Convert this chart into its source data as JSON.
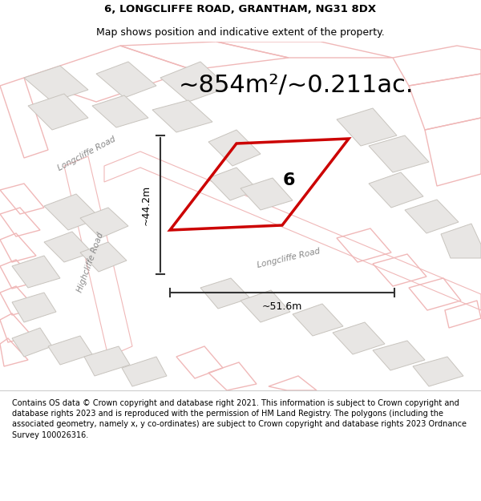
{
  "title_line1": "6, LONGCLIFFE ROAD, GRANTHAM, NG31 8DX",
  "title_line2": "Map shows position and indicative extent of the property.",
  "area_text": "~854m²/~0.211ac.",
  "label_number": "6",
  "dim_vertical": "~44.2m",
  "dim_horizontal": "~51.6m",
  "road_label1": "Longcliffe Road",
  "road_label2": "Highcliffe Road",
  "road_label3": "Longcliffe Road",
  "footer": "Contains OS data © Crown copyright and database right 2021. This information is subject to Crown copyright and database rights 2023 and is reproduced with the permission of HM Land Registry. The polygons (including the associated geometry, namely x, y co-ordinates) are subject to Crown copyright and database rights 2023 Ordnance Survey 100026316.",
  "map_bg": "#ffffff",
  "highlight_color": "#cc0000",
  "faint_color": "#f0b8b8",
  "building_fill": "#e8e6e4",
  "building_edge": "#c8c4be",
  "title_fontsize": 9.5,
  "footer_fontsize": 7.0,
  "area_fontsize": 22,
  "dim_fontsize": 9,
  "road_label_fontsize": 7.5
}
